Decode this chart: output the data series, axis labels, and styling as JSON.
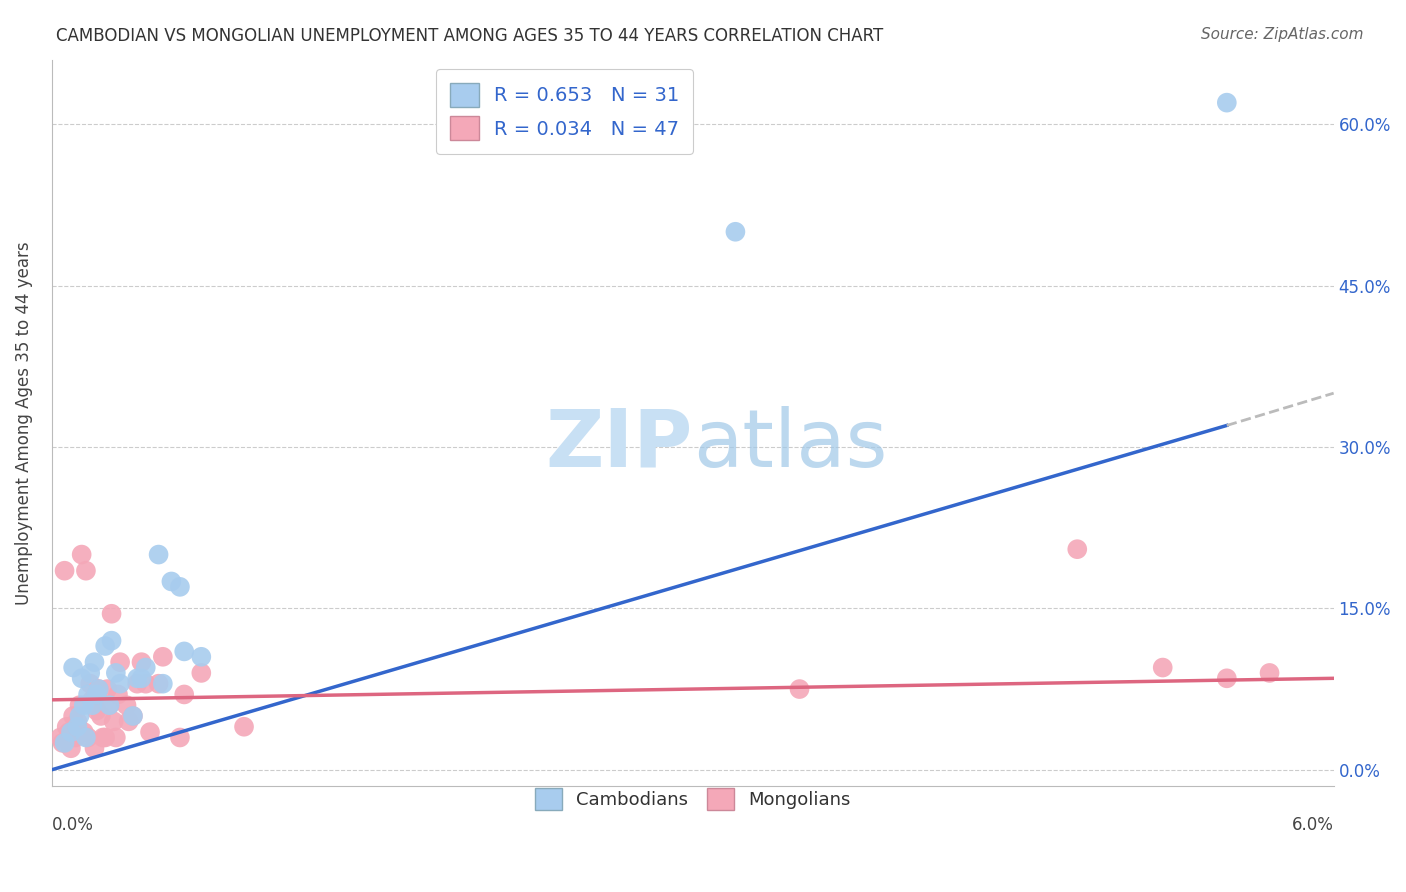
{
  "title": "CAMBODIAN VS MONGOLIAN UNEMPLOYMENT AMONG AGES 35 TO 44 YEARS CORRELATION CHART",
  "source": "Source: ZipAtlas.com",
  "ylabel": "Unemployment Among Ages 35 to 44 years",
  "xlim": [
    0.0,
    6.0
  ],
  "ylim": [
    -1.5,
    66.0
  ],
  "yticks": [
    0.0,
    15.0,
    30.0,
    45.0,
    60.0
  ],
  "ytick_labels": [
    "0.0%",
    "15.0%",
    "30.0%",
    "45.0%",
    "60.0%"
  ],
  "cambodian_R": 0.653,
  "cambodian_N": 31,
  "mongolian_R": 0.034,
  "mongolian_N": 47,
  "cambodian_color": "#A8CCEE",
  "mongolian_color": "#F4A8B8",
  "cambodian_line_color": "#3366CC",
  "mongolian_line_color": "#DD6680",
  "trendline_ext_color": "#BBBBBB",
  "background_color": "#FFFFFF",
  "grid_color": "#CCCCCC",
  "watermark_color": "#C8E0F4",
  "cambodian_x": [
    0.06,
    0.09,
    0.1,
    0.12,
    0.13,
    0.14,
    0.15,
    0.16,
    0.17,
    0.18,
    0.19,
    0.2,
    0.21,
    0.22,
    0.25,
    0.27,
    0.28,
    0.3,
    0.32,
    0.38,
    0.4,
    0.42,
    0.44,
    0.5,
    0.52,
    0.56,
    0.6,
    0.62,
    0.7,
    3.2,
    5.5
  ],
  "cambodian_y": [
    2.5,
    3.5,
    9.5,
    4.0,
    5.0,
    8.5,
    6.0,
    3.0,
    7.0,
    9.0,
    6.0,
    10.0,
    7.0,
    7.5,
    11.5,
    6.0,
    12.0,
    9.0,
    8.0,
    5.0,
    8.5,
    8.5,
    9.5,
    20.0,
    8.0,
    17.5,
    17.0,
    11.0,
    10.5,
    50.0,
    62.0
  ],
  "mongolian_x": [
    0.04,
    0.05,
    0.06,
    0.07,
    0.08,
    0.09,
    0.1,
    0.11,
    0.12,
    0.13,
    0.14,
    0.15,
    0.16,
    0.17,
    0.18,
    0.19,
    0.2,
    0.21,
    0.22,
    0.23,
    0.24,
    0.25,
    0.26,
    0.27,
    0.28,
    0.29,
    0.3,
    0.31,
    0.32,
    0.35,
    0.36,
    0.38,
    0.4,
    0.42,
    0.44,
    0.46,
    0.5,
    0.52,
    0.6,
    0.62,
    0.7,
    0.9,
    3.5,
    4.8,
    5.2,
    5.5,
    5.7
  ],
  "mongolian_y": [
    3.0,
    2.5,
    18.5,
    4.0,
    3.5,
    2.0,
    5.0,
    3.0,
    4.5,
    6.0,
    20.0,
    3.5,
    18.5,
    3.0,
    8.0,
    6.5,
    2.0,
    5.5,
    7.5,
    5.0,
    3.0,
    3.0,
    7.5,
    6.0,
    14.5,
    4.5,
    3.0,
    7.0,
    10.0,
    6.0,
    4.5,
    5.0,
    8.0,
    10.0,
    8.0,
    3.5,
    8.0,
    10.5,
    3.0,
    7.0,
    9.0,
    4.0,
    7.5,
    20.5,
    9.5,
    8.5,
    9.0
  ],
  "cam_line_x0": 0.0,
  "cam_line_y0": 0.0,
  "cam_line_x1": 5.5,
  "cam_line_y1": 32.0,
  "cam_dashed_x0": 5.5,
  "cam_dashed_y0": 32.0,
  "cam_dashed_x1": 6.0,
  "cam_dashed_y1": 35.0,
  "mon_line_x0": 0.0,
  "mon_line_y0": 6.5,
  "mon_line_x1": 6.0,
  "mon_line_y1": 8.5
}
